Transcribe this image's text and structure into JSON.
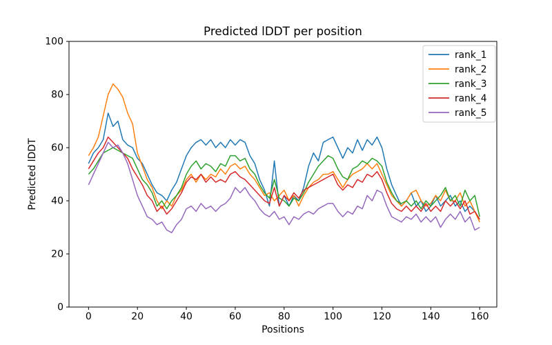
{
  "chart_data": {
    "type": "line",
    "title": "Predicted lDDT per position",
    "xlabel": "Positions",
    "ylabel": "Predicted lDDT",
    "xlim": [
      -8,
      167
    ],
    "ylim": [
      0,
      100
    ],
    "xticks": [
      0,
      20,
      40,
      60,
      80,
      100,
      120,
      140,
      160
    ],
    "yticks": [
      0,
      20,
      40,
      60,
      80,
      100
    ],
    "grid": false,
    "legend_position": "upper right",
    "background": "#ffffff",
    "spine_color": "#000000",
    "legend_border_color": "#cccccc",
    "x": [
      0,
      2,
      4,
      6,
      8,
      10,
      12,
      14,
      16,
      18,
      20,
      22,
      24,
      26,
      28,
      30,
      32,
      34,
      36,
      38,
      40,
      42,
      44,
      46,
      48,
      50,
      52,
      54,
      56,
      58,
      60,
      62,
      64,
      66,
      68,
      70,
      72,
      74,
      76,
      78,
      80,
      82,
      84,
      86,
      88,
      90,
      92,
      94,
      96,
      98,
      100,
      102,
      104,
      106,
      108,
      110,
      112,
      114,
      116,
      118,
      120,
      122,
      124,
      126,
      128,
      130,
      132,
      134,
      136,
      138,
      140,
      142,
      144,
      146,
      148,
      150,
      152,
      154,
      156,
      158,
      160
    ],
    "series": [
      {
        "name": "rank_1",
        "color": "#1f77b4",
        "values": [
          54,
          58,
          60,
          63,
          73,
          68,
          70,
          63,
          61,
          60,
          56,
          54,
          50,
          46,
          43,
          42,
          40,
          44,
          47,
          52,
          57,
          60,
          62,
          63,
          61,
          63,
          60,
          62,
          60,
          63,
          61,
          63,
          62,
          57,
          54,
          48,
          44,
          38,
          55,
          38,
          42,
          38,
          42,
          40,
          45,
          53,
          58,
          55,
          62,
          63,
          64,
          60,
          56,
          60,
          58,
          63,
          59,
          63,
          61,
          64,
          60,
          52,
          46,
          42,
          38,
          40,
          43,
          38,
          40,
          36,
          38,
          42,
          38,
          40,
          42,
          38,
          40,
          36,
          38,
          36,
          33
        ]
      },
      {
        "name": "rank_2",
        "color": "#ff7f0e",
        "values": [
          57,
          60,
          64,
          72,
          80,
          84,
          82,
          79,
          73,
          69,
          58,
          53,
          48,
          45,
          40,
          37,
          40,
          38,
          42,
          44,
          48,
          50,
          47,
          50,
          48,
          50,
          49,
          52,
          50,
          53,
          54,
          52,
          53,
          50,
          48,
          45,
          42,
          43,
          40,
          42,
          44,
          40,
          42,
          38,
          42,
          45,
          47,
          48,
          50,
          50,
          51,
          48,
          45,
          48,
          50,
          51,
          52,
          54,
          52,
          54,
          50,
          46,
          42,
          40,
          38,
          40,
          43,
          44,
          40,
          38,
          39,
          42,
          40,
          44,
          40,
          40,
          43,
          38,
          40,
          36,
          32
        ]
      },
      {
        "name": "rank_3",
        "color": "#2ca02c",
        "values": [
          50,
          52,
          55,
          58,
          59,
          60,
          59,
          58,
          57,
          56,
          52,
          48,
          46,
          43,
          38,
          40,
          37,
          40,
          42,
          45,
          50,
          53,
          55,
          52,
          54,
          53,
          51,
          54,
          53,
          57,
          57,
          55,
          56,
          52,
          50,
          46,
          43,
          41,
          48,
          41,
          40,
          38,
          41,
          40,
          43,
          47,
          50,
          53,
          55,
          57,
          56,
          52,
          49,
          48,
          52,
          53,
          55,
          54,
          56,
          55,
          53,
          47,
          43,
          40,
          39,
          40,
          38,
          40,
          37,
          40,
          38,
          40,
          42,
          45,
          40,
          42,
          38,
          44,
          40,
          42,
          34
        ]
      },
      {
        "name": "rank_4",
        "color": "#d62728",
        "values": [
          52,
          55,
          58,
          60,
          64,
          62,
          60,
          58,
          56,
          52,
          49,
          46,
          42,
          40,
          36,
          38,
          35,
          37,
          40,
          43,
          47,
          49,
          48,
          50,
          47,
          49,
          47,
          48,
          47,
          50,
          51,
          49,
          48,
          46,
          44,
          42,
          40,
          39,
          45,
          38,
          42,
          40,
          43,
          41,
          44,
          45,
          46,
          47,
          48,
          49,
          50,
          46,
          44,
          46,
          45,
          48,
          47,
          50,
          49,
          51,
          48,
          43,
          39,
          37,
          36,
          38,
          36,
          38,
          36,
          39,
          36,
          38,
          36,
          40,
          38,
          40,
          37,
          40,
          35,
          36,
          33
        ]
      },
      {
        "name": "rank_5",
        "color": "#9467bd",
        "values": [
          46,
          50,
          54,
          58,
          62,
          60,
          61,
          58,
          54,
          48,
          42,
          38,
          34,
          33,
          31,
          32,
          29,
          28,
          31,
          33,
          37,
          38,
          36,
          39,
          37,
          38,
          36,
          38,
          39,
          41,
          45,
          43,
          45,
          42,
          40,
          37,
          35,
          34,
          36,
          33,
          34,
          31,
          34,
          33,
          35,
          36,
          35,
          37,
          38,
          39,
          39,
          36,
          34,
          36,
          35,
          38,
          37,
          42,
          40,
          44,
          43,
          38,
          34,
          33,
          32,
          34,
          33,
          35,
          32,
          34,
          32,
          34,
          30,
          33,
          35,
          33,
          36,
          32,
          34,
          29,
          30
        ]
      }
    ]
  }
}
